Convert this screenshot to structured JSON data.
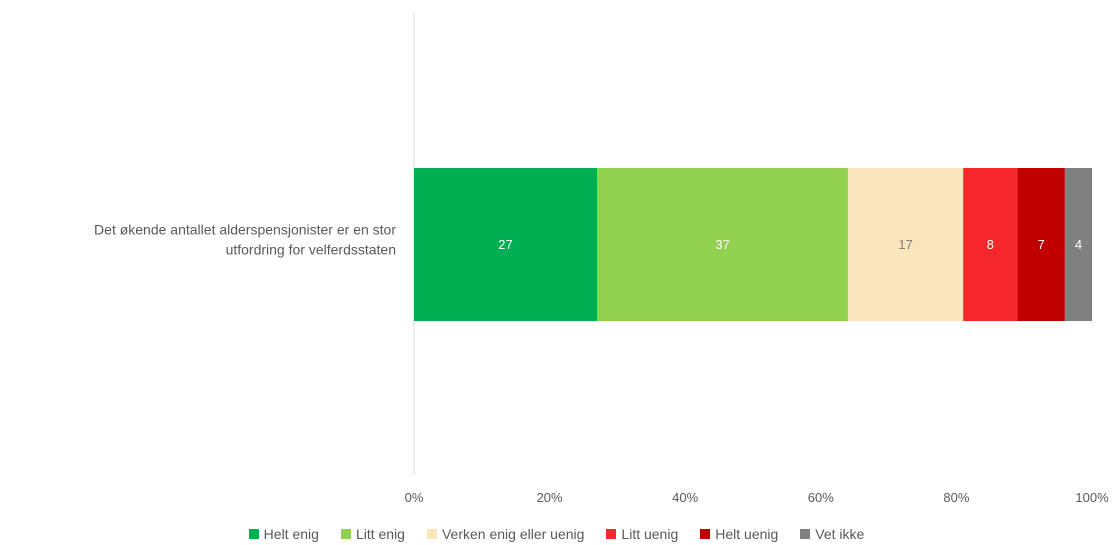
{
  "chart_data": {
    "type": "bar",
    "orientation": "horizontal",
    "stacked": "percent",
    "categories": [
      "Det økende antallet alderspensjonister er en stor utfordring for velferdsstaten"
    ],
    "category_lines": [
      [
        "Det økende antallet alderspensjonister er en stor",
        "utfordring for velferdsstaten"
      ]
    ],
    "series": [
      {
        "name": "Helt enig",
        "values": [
          27
        ],
        "color": "#00B050",
        "label_color": "#FFFFFF"
      },
      {
        "name": "Litt enig",
        "values": [
          37
        ],
        "color": "#92D050",
        "label_color": "#FFFFFF"
      },
      {
        "name": "Verken enig eller uenig",
        "values": [
          17
        ],
        "color": "#FAE5BC",
        "label_color": "#7F7F7F"
      },
      {
        "name": "Litt uenig",
        "values": [
          8
        ],
        "color": "#F5272A",
        "label_color": "#FFFFFF"
      },
      {
        "name": "Helt uenig",
        "values": [
          7
        ],
        "color": "#C00000",
        "label_color": "#FFFFFF"
      },
      {
        "name": "Vet ikke",
        "values": [
          4
        ],
        "color": "#808080",
        "label_color": "#FFFFFF"
      }
    ],
    "x_ticks": [
      "0%",
      "20%",
      "40%",
      "60%",
      "80%",
      "100%"
    ],
    "xlim": [
      0,
      100
    ],
    "grid": false,
    "legend_position": "bottom"
  }
}
